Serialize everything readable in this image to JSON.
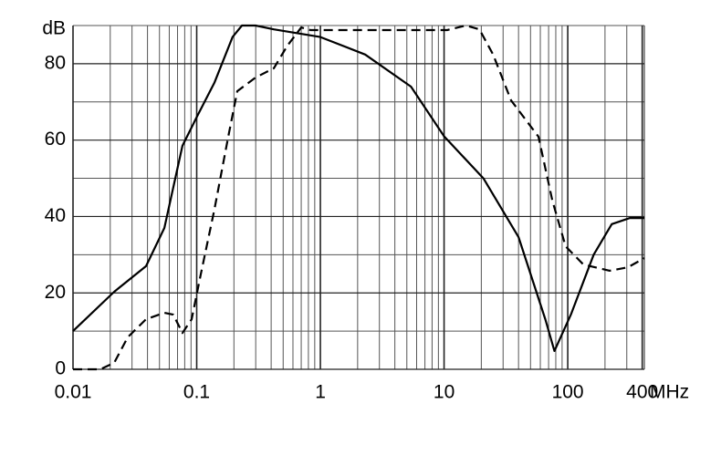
{
  "chart_data": {
    "type": "line",
    "ylabel": "dB",
    "xlabel": "MHz",
    "log_x": true,
    "grid": true,
    "xlim": [
      0.01,
      416
    ],
    "ylim": [
      0,
      90
    ],
    "xticks": [
      0.01,
      0.1,
      1,
      10,
      100,
      400
    ],
    "minor_xticks": [
      0.02,
      0.03,
      0.04,
      0.05,
      0.06,
      0.07,
      0.08,
      0.09,
      0.2,
      0.3,
      0.4,
      0.5,
      0.6,
      0.7,
      0.8,
      0.9,
      2,
      3,
      4,
      5,
      6,
      7,
      8,
      9,
      20,
      30,
      40,
      50,
      60,
      70,
      80,
      90,
      200,
      300
    ],
    "yticks": [
      0,
      20,
      40,
      60,
      80
    ],
    "minor_yticks": [
      10,
      30,
      50,
      70,
      90
    ],
    "series": [
      {
        "color": "#000000",
        "dash": false,
        "x": [
          0.01,
          0.0215,
          0.0389,
          0.0548,
          0.0767,
          0.1,
          0.139,
          0.195,
          0.232,
          0.299,
          0.42,
          1,
          2.3,
          5.4,
          10,
          20.8,
          40,
          66,
          78,
          106,
          162,
          227,
          318,
          416
        ],
        "values": [
          10,
          20.3,
          27,
          37,
          58.5,
          66,
          75,
          87,
          90,
          90,
          89,
          87,
          82.4,
          74,
          61,
          50,
          34.6,
          13,
          4.8,
          14.3,
          30,
          38,
          39.6,
          39.6
        ]
      },
      {
        "color": "#000000",
        "dash": true,
        "x": [
          0.01,
          0.0166,
          0.0215,
          0.0277,
          0.0389,
          0.0548,
          0.0647,
          0.0767,
          0.091,
          0.108,
          0.139,
          0.18,
          0.213,
          0.299,
          0.42,
          0.54,
          0.7,
          0.83,
          1.64,
          10.6,
          15,
          19.3,
          24.9,
          34.8,
          58,
          75,
          96,
          134,
          218,
          306,
          416
        ],
        "values": [
          0,
          0,
          1.7,
          8.4,
          13.1,
          14.8,
          14.3,
          9.5,
          13.1,
          25,
          41.8,
          60.9,
          72.8,
          76.4,
          78.8,
          84.7,
          89.5,
          88.8,
          88.8,
          88.8,
          90,
          89,
          82.4,
          70.4,
          60.9,
          44.2,
          32.2,
          27.4,
          25.8,
          26.7,
          29.1
        ]
      }
    ]
  }
}
